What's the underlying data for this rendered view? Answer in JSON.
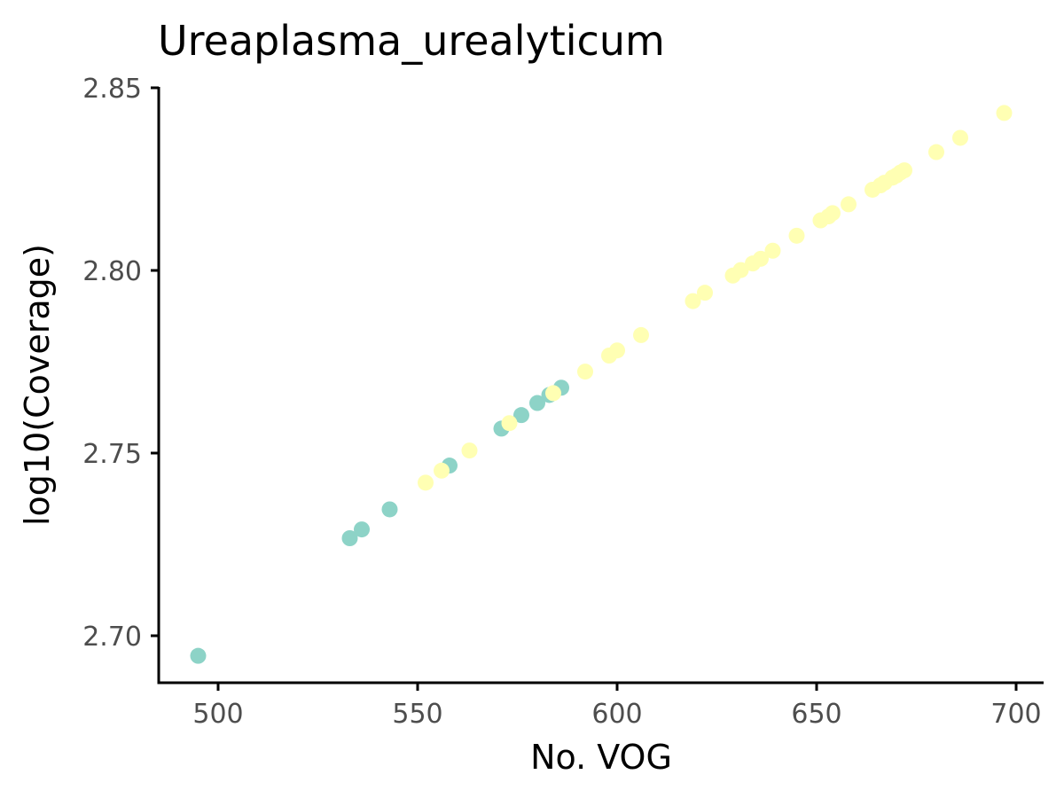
{
  "chart_data": {
    "type": "scatter",
    "title": "Ureaplasma_urealyticum",
    "xlabel": "No. VOG",
    "ylabel": "log10(Coverage)",
    "xlim": [
      485,
      707
    ],
    "ylim": [
      2.687,
      2.85
    ],
    "xticks": [
      500,
      550,
      600,
      650,
      700
    ],
    "yticks": [
      2.7,
      2.75,
      2.8,
      2.85
    ],
    "xtick_labels": [
      "500",
      "550",
      "600",
      "650",
      "700"
    ],
    "ytick_labels": [
      "2.70",
      "2.75",
      "2.80",
      "2.85"
    ],
    "grid": false,
    "legend": "none",
    "series": [
      {
        "color": "#8dd3c7",
        "points": [
          {
            "x": 495,
            "y": 2.6945
          },
          {
            "x": 533,
            "y": 2.7267
          },
          {
            "x": 536,
            "y": 2.7291
          },
          {
            "x": 543,
            "y": 2.7346
          },
          {
            "x": 558,
            "y": 2.7466
          },
          {
            "x": 571,
            "y": 2.7567
          },
          {
            "x": 576,
            "y": 2.7604
          },
          {
            "x": 580,
            "y": 2.7637
          },
          {
            "x": 583,
            "y": 2.7659
          },
          {
            "x": 586,
            "y": 2.7679
          }
        ]
      },
      {
        "color": "#ffffb3",
        "points": [
          {
            "x": 552,
            "y": 2.7419
          },
          {
            "x": 556,
            "y": 2.7452
          },
          {
            "x": 563,
            "y": 2.7507
          },
          {
            "x": 573,
            "y": 2.7582
          },
          {
            "x": 584,
            "y": 2.7664
          },
          {
            "x": 592,
            "y": 2.7723
          },
          {
            "x": 598,
            "y": 2.7767
          },
          {
            "x": 600,
            "y": 2.7781
          },
          {
            "x": 606,
            "y": 2.7823
          },
          {
            "x": 619,
            "y": 2.7916
          },
          {
            "x": 622,
            "y": 2.7939
          },
          {
            "x": 629,
            "y": 2.7986
          },
          {
            "x": 631,
            "y": 2.8001
          },
          {
            "x": 634,
            "y": 2.8019
          },
          {
            "x": 636,
            "y": 2.8032
          },
          {
            "x": 639,
            "y": 2.8054
          },
          {
            "x": 645,
            "y": 2.8095
          },
          {
            "x": 651,
            "y": 2.8137
          },
          {
            "x": 653,
            "y": 2.8148
          },
          {
            "x": 654,
            "y": 2.8157
          },
          {
            "x": 658,
            "y": 2.8181
          },
          {
            "x": 664,
            "y": 2.8221
          },
          {
            "x": 666,
            "y": 2.8233
          },
          {
            "x": 667,
            "y": 2.824
          },
          {
            "x": 669,
            "y": 2.8254
          },
          {
            "x": 670,
            "y": 2.826
          },
          {
            "x": 671,
            "y": 2.8268
          },
          {
            "x": 672,
            "y": 2.8274
          },
          {
            "x": 680,
            "y": 2.8324
          },
          {
            "x": 686,
            "y": 2.8363
          },
          {
            "x": 697,
            "y": 2.8431
          }
        ]
      }
    ]
  }
}
